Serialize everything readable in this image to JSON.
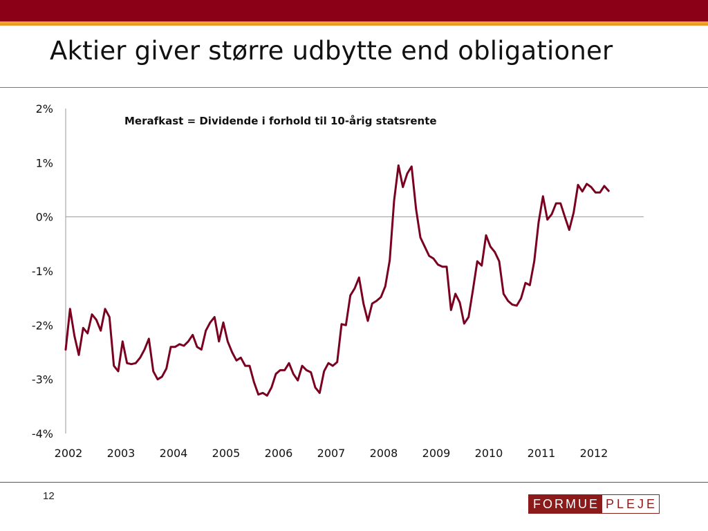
{
  "slide": {
    "title": "Aktier giver større udbytte end obligationer",
    "page_number": "12",
    "logo_left": "FORMUE",
    "logo_right": "PLEJE",
    "colors": {
      "header": "#8b0016",
      "accent": "#f0a02a",
      "line": "#7a0020"
    }
  },
  "chart_data": {
    "type": "line",
    "title": "",
    "annotation": "Merafkast = Dividende i forhold til 10-årig statsrente",
    "xlabel": "",
    "ylabel": "",
    "ylim": [
      -4,
      2
    ],
    "xlim": [
      2002,
      2013
    ],
    "yticks": [
      "2%",
      "1%",
      "0%",
      "-1%",
      "-2%",
      "-3%",
      "-4%"
    ],
    "xticks": [
      "2002",
      "2003",
      "2004",
      "2005",
      "2006",
      "2007",
      "2008",
      "2009",
      "2010",
      "2011",
      "2012"
    ],
    "series": [
      {
        "name": "Merafkast",
        "color": "#7a0020",
        "x": [
          2002.0,
          2002.083,
          2002.167,
          2002.25,
          2002.333,
          2002.417,
          2002.5,
          2002.583,
          2002.667,
          2002.75,
          2002.833,
          2002.917,
          2003.0,
          2003.083,
          2003.167,
          2003.25,
          2003.333,
          2003.417,
          2003.5,
          2003.583,
          2003.667,
          2003.75,
          2003.833,
          2003.917,
          2004.0,
          2004.083,
          2004.167,
          2004.25,
          2004.333,
          2004.417,
          2004.5,
          2004.583,
          2004.667,
          2004.75,
          2004.833,
          2004.917,
          2005.0,
          2005.083,
          2005.167,
          2005.25,
          2005.333,
          2005.417,
          2005.5,
          2005.583,
          2005.667,
          2005.75,
          2005.833,
          2005.917,
          2006.0,
          2006.083,
          2006.167,
          2006.25,
          2006.333,
          2006.417,
          2006.5,
          2006.583,
          2006.667,
          2006.75,
          2006.833,
          2006.917,
          2007.0,
          2007.083,
          2007.167,
          2007.25,
          2007.333,
          2007.417,
          2007.5,
          2007.583,
          2007.667,
          2007.75,
          2007.833,
          2007.917,
          2008.0,
          2008.083,
          2008.167,
          2008.25,
          2008.333,
          2008.417,
          2008.5,
          2008.583,
          2008.667,
          2008.75,
          2008.833,
          2008.917,
          2009.0,
          2009.083,
          2009.167,
          2009.25,
          2009.333,
          2009.417,
          2009.5,
          2009.583,
          2009.667,
          2009.75,
          2009.833,
          2009.917,
          2010.0,
          2010.083,
          2010.167,
          2010.25,
          2010.333,
          2010.417,
          2010.5,
          2010.583,
          2010.667,
          2010.75,
          2010.833,
          2010.917,
          2011.0,
          2011.083,
          2011.167,
          2011.25,
          2011.333,
          2011.417,
          2011.5,
          2011.583,
          2011.667,
          2011.75,
          2011.833,
          2011.917,
          2012.0,
          2012.083,
          2012.167,
          2012.25,
          2012.333
        ],
        "values": [
          -2.45,
          -1.7,
          -2.2,
          -2.55,
          -2.05,
          -2.15,
          -1.8,
          -1.9,
          -2.1,
          -1.7,
          -1.85,
          -2.75,
          -2.85,
          -2.3,
          -2.7,
          -2.72,
          -2.7,
          -2.6,
          -2.45,
          -2.25,
          -2.85,
          -3.0,
          -2.95,
          -2.8,
          -2.4,
          -2.4,
          -2.35,
          -2.38,
          -2.3,
          -2.18,
          -2.4,
          -2.45,
          -2.1,
          -1.95,
          -1.85,
          -2.3,
          -1.95,
          -2.3,
          -2.5,
          -2.65,
          -2.6,
          -2.75,
          -2.75,
          -3.05,
          -3.28,
          -3.25,
          -3.3,
          -3.15,
          -2.9,
          -2.83,
          -2.83,
          -2.7,
          -2.9,
          -3.02,
          -2.75,
          -2.83,
          -2.87,
          -3.15,
          -3.25,
          -2.85,
          -2.7,
          -2.75,
          -2.68,
          -1.98,
          -2.0,
          -1.45,
          -1.32,
          -1.12,
          -1.6,
          -1.92,
          -1.6,
          -1.55,
          -1.48,
          -1.28,
          -0.8,
          0.3,
          0.95,
          0.55,
          0.8,
          0.93,
          0.15,
          -0.38,
          -0.55,
          -0.72,
          -0.77,
          -0.88,
          -0.92,
          -0.92,
          -1.72,
          -1.42,
          -1.58,
          -1.97,
          -1.85,
          -1.35,
          -0.82,
          -0.9,
          -0.34,
          -0.55,
          -0.65,
          -0.82,
          -1.42,
          -1.55,
          -1.62,
          -1.64,
          -1.5,
          -1.22,
          -1.26,
          -0.82,
          -0.1,
          0.38,
          -0.05,
          0.05,
          0.25,
          0.25,
          0.0,
          -0.24,
          0.08,
          0.59,
          0.47,
          0.61,
          0.55,
          0.45,
          0.45,
          0.57,
          0.48
        ]
      }
    ]
  }
}
